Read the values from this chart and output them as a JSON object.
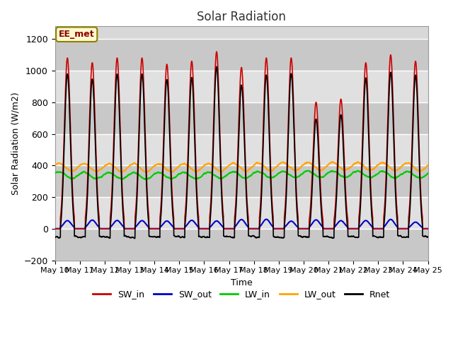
{
  "title": "Solar Radiation",
  "ylabel": "Solar Radiation (W/m2)",
  "xlabel": "Time",
  "ylim": [
    -200,
    1280
  ],
  "yticks": [
    -200,
    0,
    200,
    400,
    600,
    800,
    1000,
    1200
  ],
  "n_days": 15,
  "annotation_text": "EE_met",
  "annotation_box_color": "#FFFACD",
  "annotation_border_color": "#8B8000",
  "SW_in_color": "#CC0000",
  "SW_out_color": "#0000CC",
  "LW_in_color": "#00CC00",
  "LW_out_color": "#FFA500",
  "Rnet_color": "#000000",
  "background_color": "#FFFFFF",
  "plot_bg_color": "#D8D8D8",
  "grid_color": "#EBEBEB",
  "tick_labels": [
    "May 10",
    "May 11",
    "May 12",
    "May 13",
    "May 14",
    "May 15",
    "May 16",
    "May 17",
    "May 18",
    "May 19",
    "May 20",
    "May 21",
    "May 22",
    "May 23",
    "May 24",
    "May 25"
  ],
  "sw_in_peaks": [
    1080,
    1050,
    1080,
    1080,
    1040,
    1060,
    1120,
    1020,
    1080,
    1080,
    800,
    820,
    1050,
    1100,
    1060
  ],
  "lw_in_base": 340,
  "lw_out_base": 390
}
